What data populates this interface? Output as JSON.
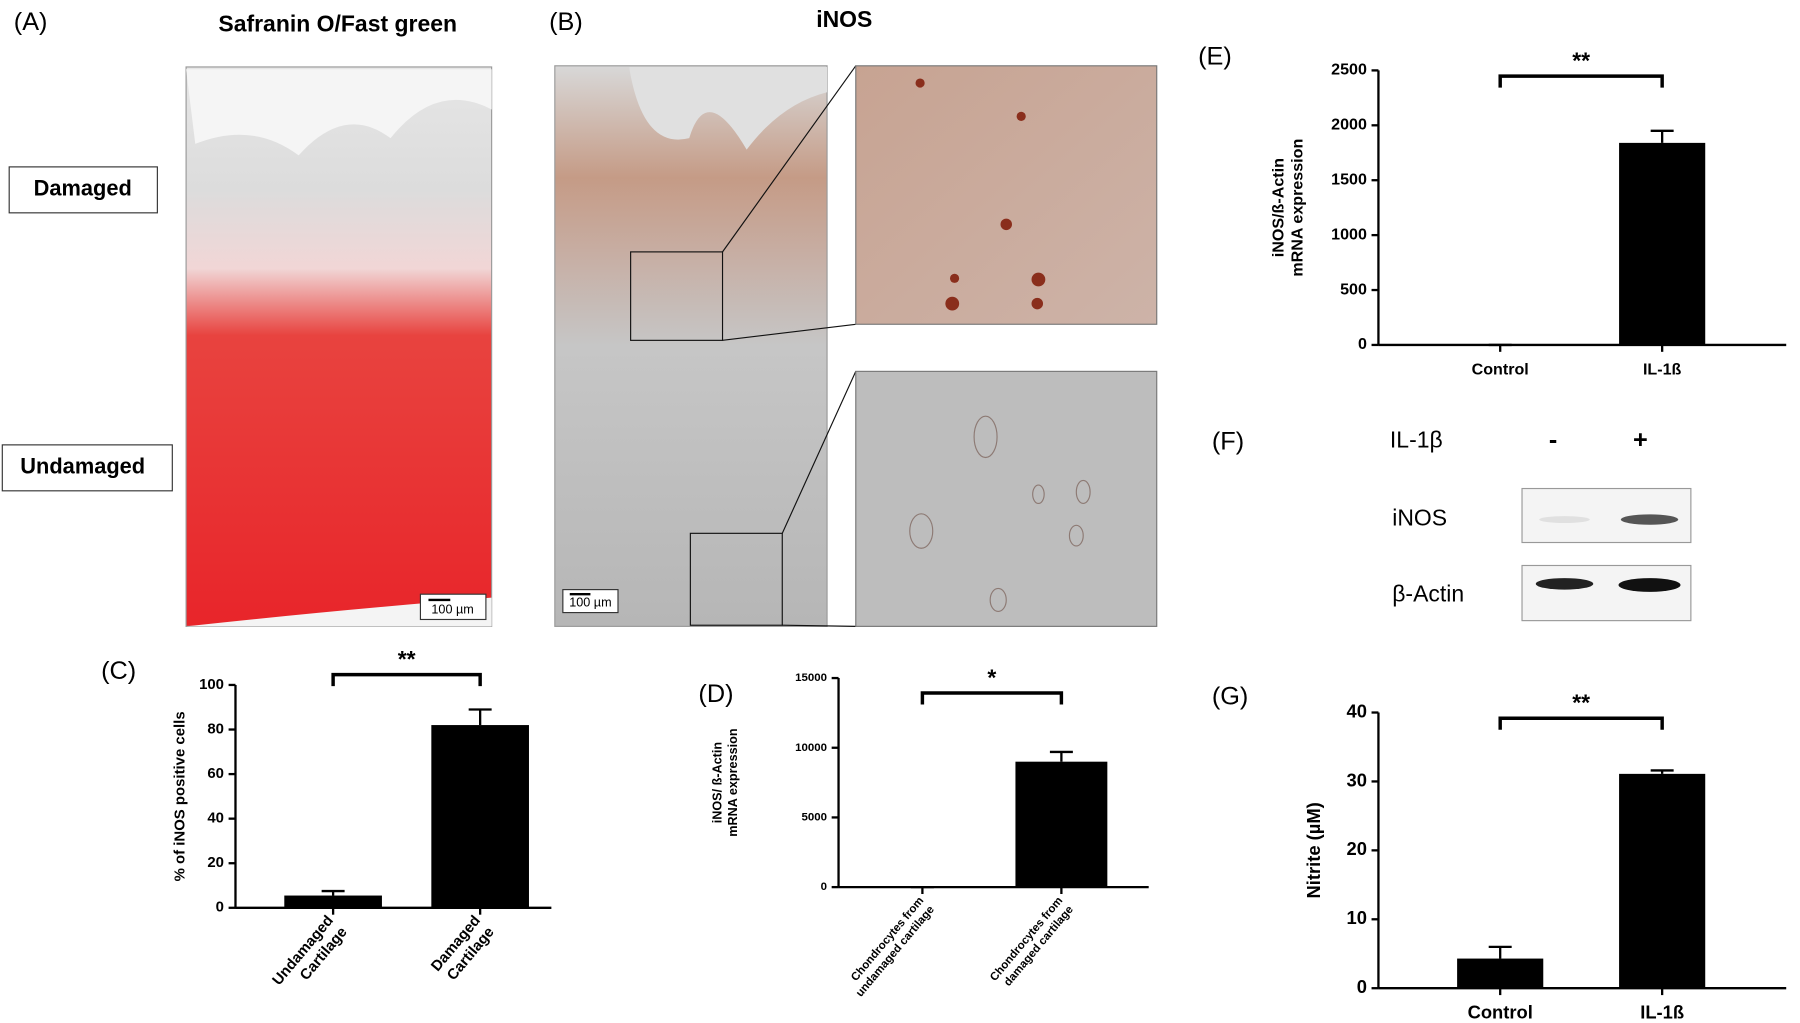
{
  "figure": {
    "panels": {
      "A": "(A)",
      "B": "(B)",
      "C": "(C)",
      "D": "(D)",
      "E": "(E)",
      "F": "(F)",
      "G": "(G)"
    },
    "stain_a": "Safranin O/Fast green",
    "stain_b": "iNOS",
    "zone_damaged": "Damaged",
    "zone_undamaged": "Undamaged",
    "scale_a": "100 µm",
    "scale_b": "100 µm",
    "blot": {
      "treatment": "IL-1β",
      "minus": "-",
      "plus": "+",
      "row1": "iNOS",
      "row2": "β-Actin"
    }
  },
  "chart_data": [
    {
      "type": "bar",
      "ylabel": "% of iNOS positive cells",
      "categories": [
        "Undamaged\nCartilage",
        "Damaged\nCartilage"
      ],
      "values": [
        5.5,
        82
      ],
      "errors": [
        2,
        7
      ],
      "color": "#000000",
      "ylim": [
        0,
        100
      ],
      "yticks": [
        0,
        20,
        40,
        60,
        80,
        100
      ],
      "annotation": "**"
    },
    {
      "type": "bar",
      "ylabel": "iNOS/ ß-Actin\nmRNA expression",
      "categories": [
        "Chondrocytes from\nundamaged cartilage",
        "Chondrocytes from\ndamaged cartilage"
      ],
      "values": [
        0,
        9000
      ],
      "errors": [
        0,
        700
      ],
      "color": "#000000",
      "ylim": [
        0,
        15000
      ],
      "yticks": [
        0,
        5000,
        10000,
        15000
      ],
      "annotation": "*"
    },
    {
      "type": "bar",
      "ylabel": "iNOS/ß-Actin\nmRNA expression",
      "categories": [
        "Control",
        "IL-1ß"
      ],
      "values": [
        0,
        1840
      ],
      "errors": [
        0,
        110
      ],
      "color": "#000000",
      "ylim": [
        0,
        2500
      ],
      "yticks": [
        0,
        500,
        1000,
        1500,
        2000,
        2500
      ],
      "annotation": "**"
    },
    {
      "type": "bar",
      "ylabel": "Nitrite (µM)",
      "categories": [
        "Control",
        "IL-1ß"
      ],
      "values": [
        4.3,
        31.1
      ],
      "errors": [
        1.7,
        0.5
      ],
      "color": "#000000",
      "ylim": [
        0,
        40
      ],
      "yticks": [
        0,
        10,
        20,
        30,
        40
      ],
      "annotation": "**"
    }
  ]
}
